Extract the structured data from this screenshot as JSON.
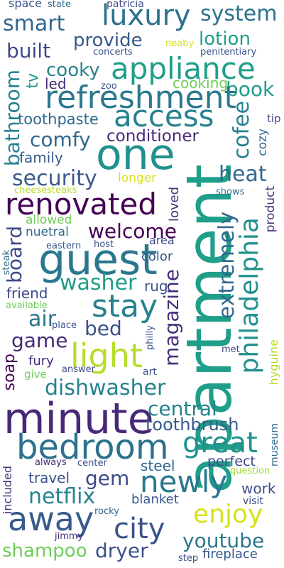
{
  "words": [
    {
      "text": "space",
      "color": "#3b528b"
    },
    {
      "text": "state",
      "color": "#31688e"
    },
    {
      "text": "patricia",
      "color": "#3e4a89"
    },
    {
      "text": "luxury",
      "color": "#2c728e"
    },
    {
      "text": "system",
      "color": "#2c728e"
    },
    {
      "text": "smart",
      "color": "#31688e"
    },
    {
      "text": "provide",
      "color": "#38598c"
    },
    {
      "text": "lotion",
      "color": "#1f9e89"
    },
    {
      "text": "built",
      "color": "#3e4a89"
    },
    {
      "text": "concerts",
      "color": "#3b528b"
    },
    {
      "text": "neaby",
      "color": "#d8e219"
    },
    {
      "text": "penitentiary",
      "color": "#3b528b"
    },
    {
      "text": "appliance",
      "color": "#1f9e89"
    },
    {
      "text": "cooky",
      "color": "#26828e"
    },
    {
      "text": "tv",
      "color": "#1f9e89"
    },
    {
      "text": "bathroom",
      "color": "#26828e"
    },
    {
      "text": "led",
      "color": "#472d7b"
    },
    {
      "text": "zoo",
      "color": "#3b528b"
    },
    {
      "text": "cooking",
      "color": "#6ece58"
    },
    {
      "text": "book",
      "color": "#1f9e89"
    },
    {
      "text": "refreshment",
      "color": "#2a788e"
    },
    {
      "text": "access",
      "color": "#26828e"
    },
    {
      "text": "cofee",
      "color": "#26828e"
    },
    {
      "text": "toothpaste",
      "color": "#31688e"
    },
    {
      "text": "tip",
      "color": "#3e4a89"
    },
    {
      "text": "one",
      "color": "#21918c"
    },
    {
      "text": "comfy",
      "color": "#31688e"
    },
    {
      "text": "conditioner",
      "color": "#482878"
    },
    {
      "text": "cozy",
      "color": "#31688e"
    },
    {
      "text": "family",
      "color": "#38598c"
    },
    {
      "text": "apartment",
      "color": "#1f9e89"
    },
    {
      "text": "heat",
      "color": "#31688e"
    },
    {
      "text": "security",
      "color": "#38598c"
    },
    {
      "text": "longer",
      "color": "#d8e219"
    },
    {
      "text": "cheesesteaks",
      "color": "#b5de2b"
    },
    {
      "text": "shows",
      "color": "#31688e"
    },
    {
      "text": "renovated",
      "color": "#440154"
    },
    {
      "text": "philadelphia",
      "color": "#21918c"
    },
    {
      "text": "loved",
      "color": "#472d7b"
    },
    {
      "text": "allowed",
      "color": "#6ece58"
    },
    {
      "text": "product",
      "color": "#472d7b"
    },
    {
      "text": "board",
      "color": "#3e4a89"
    },
    {
      "text": "welcome",
      "color": "#440154"
    },
    {
      "text": "nuetral",
      "color": "#31688e"
    },
    {
      "text": "extremely",
      "color": "#31688e"
    },
    {
      "text": "steak",
      "color": "#31688e"
    },
    {
      "text": "eastern",
      "color": "#38598c"
    },
    {
      "text": "host",
      "color": "#3b528b"
    },
    {
      "text": "area",
      "color": "#3e4a89"
    },
    {
      "text": "guest",
      "color": "#2a788e"
    },
    {
      "text": "color",
      "color": "#3b528b"
    },
    {
      "text": "magazine",
      "color": "#472d7b"
    },
    {
      "text": "washer",
      "color": "#1f9e89"
    },
    {
      "text": "rug",
      "color": "#3b528b"
    },
    {
      "text": "friend",
      "color": "#3e4a89"
    },
    {
      "text": "stay",
      "color": "#26828e"
    },
    {
      "text": "available",
      "color": "#6ece58"
    },
    {
      "text": "air",
      "color": "#2c728e"
    },
    {
      "text": "bed",
      "color": "#3b528b"
    },
    {
      "text": "place",
      "color": "#3b528b"
    },
    {
      "text": "philly",
      "color": "#3b528b"
    },
    {
      "text": "game",
      "color": "#482878"
    },
    {
      "text": "light",
      "color": "#b5de2b"
    },
    {
      "text": "met",
      "color": "#3e4a89"
    },
    {
      "text": "hyguine",
      "color": "#b5de2b"
    },
    {
      "text": "soap",
      "color": "#440154"
    },
    {
      "text": "fury",
      "color": "#482878"
    },
    {
      "text": "give",
      "color": "#6ece58"
    },
    {
      "text": "answer",
      "color": "#3e4a89"
    },
    {
      "text": "art",
      "color": "#3b528b"
    },
    {
      "text": "dishwasher",
      "color": "#26828e"
    },
    {
      "text": "minute",
      "color": "#482878"
    },
    {
      "text": "central",
      "color": "#26828e"
    },
    {
      "text": "toothbrush",
      "color": "#38598c"
    },
    {
      "text": "bedroom",
      "color": "#2c728e"
    },
    {
      "text": "great",
      "color": "#21918c"
    },
    {
      "text": "museum",
      "color": "#31688e"
    },
    {
      "text": "gem",
      "color": "#3e4a89"
    },
    {
      "text": "steel",
      "color": "#31688e"
    },
    {
      "text": "included",
      "color": "#472d7b"
    },
    {
      "text": "always",
      "color": "#482878"
    },
    {
      "text": "center",
      "color": "#3b528b"
    },
    {
      "text": "perfect",
      "color": "#3e4a89"
    },
    {
      "text": "question",
      "color": "#a0da39"
    },
    {
      "text": "travel",
      "color": "#3b528b"
    },
    {
      "text": "newly",
      "color": "#2a788e"
    },
    {
      "text": "work",
      "color": "#3e4a89"
    },
    {
      "text": "netflix",
      "color": "#26828e"
    },
    {
      "text": "blanket",
      "color": "#38598c"
    },
    {
      "text": "visit",
      "color": "#3e4a89"
    },
    {
      "text": "away",
      "color": "#38598c"
    },
    {
      "text": "enjoy",
      "color": "#d8e219"
    },
    {
      "text": "rocky",
      "color": "#31688e"
    },
    {
      "text": "city",
      "color": "#3b528b"
    },
    {
      "text": "jimmy",
      "color": "#472d7b"
    },
    {
      "text": "youtube",
      "color": "#2a788e"
    },
    {
      "text": "shampoo",
      "color": "#6ece58"
    },
    {
      "text": "dryer",
      "color": "#3b528b"
    },
    {
      "text": "fireplace",
      "color": "#38598c"
    },
    {
      "text": "step",
      "color": "#3b528b"
    }
  ]
}
